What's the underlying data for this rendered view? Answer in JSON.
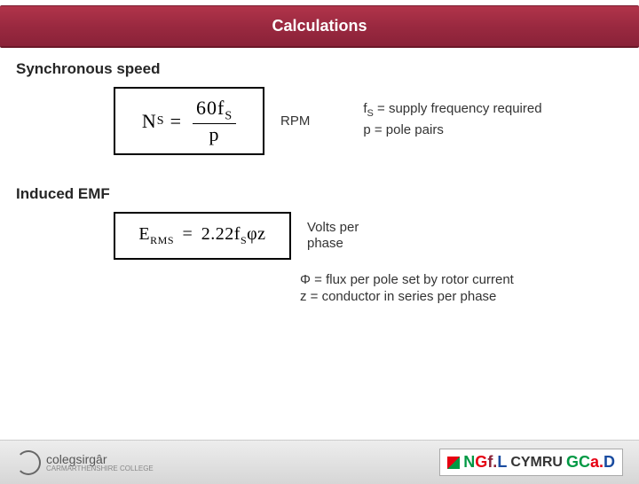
{
  "header": {
    "title": "Calculations"
  },
  "sync": {
    "heading": "Synchronous speed",
    "formula": {
      "lhs_var": "N",
      "lhs_sub": "S",
      "eq": "=",
      "num_pre": "60f",
      "num_sub": "S",
      "denom": "p"
    },
    "unit": "RPM",
    "defs": [
      {
        "sym": "f",
        "sub": "S",
        "text": " = supply frequency required"
      },
      {
        "sym": "p",
        "sub": "",
        "text": " = pole pairs"
      }
    ]
  },
  "emf": {
    "heading": "Induced EMF",
    "formula": {
      "lhs_var": "E",
      "lhs_sub": "RMS",
      "eq": "=",
      "const": "2.22f",
      "const_sub": "S",
      "tail": "φz"
    },
    "unit_l1": "Volts per",
    "unit_l2": "phase",
    "defs": [
      {
        "sym": "Φ",
        "text": " = flux per pole set by rotor current"
      },
      {
        "sym": "z",
        "text": " = conductor in series per phase"
      }
    ]
  },
  "footer": {
    "left_brand": "colegsirgâr",
    "left_sub": "CARMARTHENSHIRE COLLEGE",
    "right_parts": {
      "n": "N",
      "g": "G",
      "f": "f.",
      "l": "L",
      "cymru": "CYMRU",
      "gc": "GC",
      "a": "a.",
      "d": "D"
    }
  },
  "style": {
    "header_bg": "#9a2940",
    "box_border": "#000000",
    "text_color": "#333333",
    "footer_bg": "#e0e0e0"
  }
}
